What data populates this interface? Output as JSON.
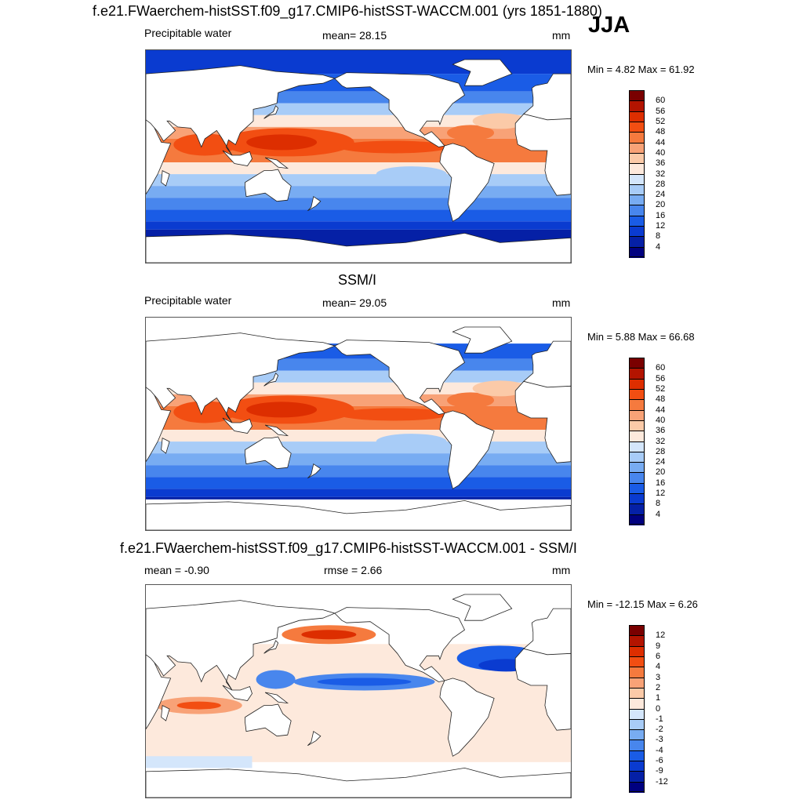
{
  "season": "JJA",
  "panels": [
    {
      "title": "f.e21.FWaerchem-histSST.f09_g17.CMIP6-histSST-WACCM.001 (yrs 1851-1880)",
      "left_label": "Precipitable water",
      "center_label": "mean=  28.15",
      "right_label": "mm",
      "minmax": "Min =   4.82 Max =  61.92",
      "field": "model",
      "colorbar": {
        "labels": [
          "60",
          "56",
          "52",
          "48",
          "44",
          "40",
          "36",
          "32",
          "28",
          "24",
          "20",
          "16",
          "12",
          "8",
          "4"
        ],
        "colors": [
          "#7a0000",
          "#b31400",
          "#dd2e00",
          "#f24e12",
          "#f57a3e",
          "#f8a277",
          "#fbcaa8",
          "#fde9dc",
          "#d4e6fb",
          "#a8ccf7",
          "#78acf2",
          "#4886ed",
          "#1a5ce6",
          "#0a3bd0",
          "#0520a6",
          "#000080"
        ]
      },
      "map_colors": {
        "warm": "#f25a26",
        "cool": "#2f6ae6",
        "polar": "#0a3bd0"
      }
    },
    {
      "title": "SSM/I",
      "left_label": "Precipitable water",
      "center_label": "mean=  29.05",
      "right_label": "mm",
      "minmax": "Min =   5.88 Max =  66.68",
      "field": "obs",
      "colorbar": {
        "labels": [
          "60",
          "56",
          "52",
          "48",
          "44",
          "40",
          "36",
          "32",
          "28",
          "24",
          "20",
          "16",
          "12",
          "8",
          "4"
        ],
        "colors": [
          "#7a0000",
          "#b31400",
          "#dd2e00",
          "#f24e12",
          "#f57a3e",
          "#f8a277",
          "#fbcaa8",
          "#fde9dc",
          "#d4e6fb",
          "#a8ccf7",
          "#78acf2",
          "#4886ed",
          "#1a5ce6",
          "#0a3bd0",
          "#0520a6",
          "#000080"
        ]
      },
      "map_colors": {
        "warm": "#e84a1c",
        "cool": "#2f6ae6",
        "polar": "#0a3bd0"
      }
    },
    {
      "title": "f.e21.FWaerchem-histSST.f09_g17.CMIP6-histSST-WACCM.001 - SSM/I",
      "left_label": "mean =  -0.90",
      "center_label": "rmse =   2.66",
      "right_label": "mm",
      "minmax": "Min = -12.15 Max =   6.26",
      "field": "diff",
      "colorbar": {
        "labels": [
          "12",
          "9",
          "6",
          "4",
          "3",
          "2",
          "1",
          "0",
          "-1",
          "-2",
          "-3",
          "-4",
          "-6",
          "-9",
          "-12"
        ],
        "colors": [
          "#7a0000",
          "#b31400",
          "#dd2e00",
          "#f24e12",
          "#f57a3e",
          "#f8a277",
          "#fbcaa8",
          "#fde9dc",
          "#d4e6fb",
          "#a8ccf7",
          "#78acf2",
          "#4886ed",
          "#1a5ce6",
          "#0a3bd0",
          "#0520a6",
          "#000080"
        ]
      },
      "map_colors": {
        "warm": "#f57a3e",
        "cool": "#1a5ce6",
        "polar": "#d4e6fb"
      }
    }
  ]
}
